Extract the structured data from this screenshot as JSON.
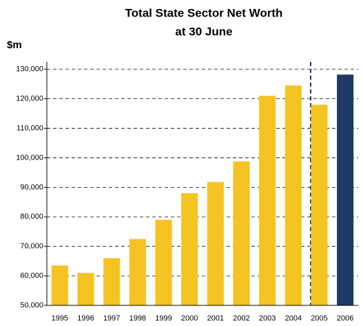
{
  "chart_data": {
    "type": "bar",
    "title": [
      "Total State Sector Net Worth",
      "at 30 June"
    ],
    "y_label": "$m",
    "categories": [
      "1995",
      "1996",
      "1997",
      "1998",
      "1999",
      "2000",
      "2001",
      "2002",
      "2003",
      "2004",
      "2005",
      "2006"
    ],
    "values": [
      63500,
      61000,
      66000,
      72500,
      79000,
      88000,
      91800,
      98800,
      121000,
      124500,
      118000,
      128200
    ],
    "colors": [
      "#f5c423",
      "#f5c423",
      "#f5c423",
      "#f5c423",
      "#f5c423",
      "#f5c423",
      "#f5c423",
      "#f5c423",
      "#f5c423",
      "#f5c423",
      "#f5c423",
      "#1f3864"
    ],
    "ylim": [
      50000,
      132500
    ],
    "yticks": [
      {
        "value": 50000,
        "label": "50,000"
      },
      {
        "value": 60000,
        "label": "60,000"
      },
      {
        "value": 70000,
        "label": "70,000"
      },
      {
        "value": 80000,
        "label": "80,000"
      },
      {
        "value": 90000,
        "label": "90,000"
      },
      {
        "value": 100000,
        "label": "100,000"
      },
      {
        "value": 110000,
        "label": "110,000"
      },
      {
        "value": 120000,
        "label": "120,000"
      },
      {
        "value": 130000,
        "label": "130,000"
      }
    ],
    "grid": true
  }
}
